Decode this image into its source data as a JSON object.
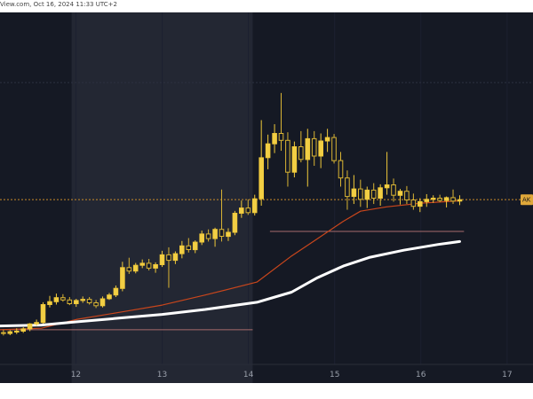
{
  "header": {
    "watermark": "View.com, Oct 16, 2024 11:33 UTC+2"
  },
  "chart_data": {
    "type": "candlestick",
    "x_tick_labels": [
      "12",
      "13",
      "14",
      "15",
      "16",
      "17"
    ],
    "x_tick_values": [
      12,
      13,
      14,
      15,
      16,
      17
    ],
    "xlim": [
      11.12,
      17.3
    ],
    "ylim": [
      0,
      100
    ],
    "price_tag": {
      "label": "AK",
      "value": 47.5
    },
    "highlight_range": [
      11.95,
      14.05
    ],
    "horizontal_lines": [
      {
        "y": 47.5,
        "color": "#c98b2a",
        "dashed": true,
        "x_from": 11.12,
        "x_to": 17.3
      },
      {
        "y": 2.5,
        "color": "#a86b6b",
        "dashed": false,
        "x_from": 11.12,
        "x_to": 14.05
      },
      {
        "y": 36.5,
        "color": "#a86b6b",
        "dashed": false,
        "x_from": 14.25,
        "x_to": 16.5
      },
      {
        "y": 88,
        "color": "#2c3140",
        "dashed": true,
        "x_from": 11.12,
        "x_to": 17.3
      }
    ],
    "ohlc": [
      [
        1.5,
        2.5,
        0.5,
        1.2
      ],
      [
        1.2,
        2.3,
        0.6,
        1.8
      ],
      [
        1.8,
        3.0,
        1.0,
        2.0
      ],
      [
        2.0,
        3.4,
        1.4,
        2.8
      ],
      [
        2.8,
        4.8,
        2.0,
        4.5
      ],
      [
        4.5,
        6.0,
        3.8,
        5.0
      ],
      [
        5.0,
        12.0,
        4.6,
        11.2
      ],
      [
        11.2,
        14.2,
        10.2,
        12.2
      ],
      [
        12.2,
        15.0,
        11.2,
        13.6
      ],
      [
        13.6,
        14.8,
        12.2,
        12.8
      ],
      [
        12.8,
        13.8,
        11.0,
        11.5
      ],
      [
        11.5,
        13.2,
        10.4,
        12.6
      ],
      [
        12.6,
        14.0,
        11.8,
        13.0
      ],
      [
        13.0,
        13.8,
        11.2,
        11.8
      ],
      [
        11.8,
        12.8,
        10.0,
        10.8
      ],
      [
        10.8,
        14.0,
        10.2,
        13.2
      ],
      [
        13.2,
        15.2,
        12.8,
        14.5
      ],
      [
        14.5,
        17.8,
        13.8,
        16.8
      ],
      [
        16.8,
        26.0,
        15.8,
        24.0
      ],
      [
        24.0,
        27.4,
        21.8,
        22.8
      ],
      [
        22.8,
        25.6,
        22.0,
        24.8
      ],
      [
        24.8,
        26.8,
        23.8,
        25.5
      ],
      [
        25.5,
        27.0,
        23.0,
        23.8
      ],
      [
        23.8,
        25.8,
        22.2,
        25.0
      ],
      [
        25.0,
        29.8,
        24.2,
        28.4
      ],
      [
        28.4,
        31.0,
        17.0,
        26.5
      ],
      [
        26.5,
        29.6,
        25.2,
        28.8
      ],
      [
        28.8,
        33.2,
        27.2,
        31.5
      ],
      [
        31.5,
        34.2,
        29.2,
        30.2
      ],
      [
        30.2,
        33.4,
        29.0,
        32.8
      ],
      [
        32.8,
        36.8,
        31.8,
        35.6
      ],
      [
        35.6,
        37.2,
        33.0,
        34.0
      ],
      [
        34.0,
        37.8,
        31.2,
        37.2
      ],
      [
        37.2,
        51.0,
        33.0,
        34.8
      ],
      [
        34.8,
        37.6,
        33.2,
        36.2
      ],
      [
        36.2,
        43.6,
        35.2,
        42.8
      ],
      [
        42.8,
        47.2,
        41.2,
        44.6
      ],
      [
        44.6,
        47.6,
        42.2,
        43.0
      ],
      [
        43.0,
        49.2,
        42.0,
        47.8
      ],
      [
        47.8,
        75.0,
        45.4,
        62.0
      ],
      [
        62.0,
        70.0,
        58.0,
        66.8
      ],
      [
        66.8,
        73.6,
        63.6,
        70.4
      ],
      [
        70.4,
        84.4,
        64.4,
        68.0
      ],
      [
        68.0,
        70.8,
        52.0,
        57.0
      ],
      [
        57.0,
        67.6,
        55.2,
        65.8
      ],
      [
        65.8,
        71.2,
        60.4,
        61.4
      ],
      [
        61.4,
        72.0,
        52.0,
        68.6
      ],
      [
        68.6,
        71.2,
        59.2,
        62.6
      ],
      [
        62.6,
        70.4,
        58.4,
        67.8
      ],
      [
        67.8,
        72.0,
        64.0,
        69.0
      ],
      [
        69.0,
        70.2,
        60.0,
        61.0
      ],
      [
        61.0,
        64.0,
        52.0,
        55.0
      ],
      [
        55.0,
        57.6,
        44.0,
        48.6
      ],
      [
        48.6,
        56.0,
        46.0,
        51.2
      ],
      [
        51.2,
        54.4,
        45.0,
        47.6
      ],
      [
        47.6,
        52.0,
        44.6,
        50.8
      ],
      [
        50.8,
        53.2,
        46.0,
        48.0
      ],
      [
        48.0,
        52.8,
        45.4,
        51.6
      ],
      [
        51.6,
        64.0,
        49.2,
        52.6
      ],
      [
        52.6,
        54.8,
        46.8,
        49.0
      ],
      [
        49.0,
        51.2,
        45.8,
        50.4
      ],
      [
        50.4,
        52.2,
        46.0,
        47.4
      ],
      [
        47.4,
        49.6,
        44.0,
        45.2
      ],
      [
        45.2,
        48.0,
        43.2,
        46.8
      ],
      [
        46.8,
        49.4,
        45.0,
        47.6
      ],
      [
        47.6,
        49.0,
        46.4,
        48.0
      ],
      [
        48.0,
        49.2,
        46.6,
        47.2
      ],
      [
        47.2,
        48.6,
        44.8,
        48.2
      ],
      [
        48.2,
        51.0,
        46.0,
        47.0
      ],
      [
        47.0,
        49.0,
        45.6,
        47.5
      ]
    ],
    "series": [
      {
        "color": "#c9461c",
        "points": [
          [
            11.12,
            2.5
          ],
          [
            11.6,
            3.0
          ],
          [
            12.0,
            6.0
          ],
          [
            12.5,
            8.5
          ],
          [
            13.0,
            11.0
          ],
          [
            13.5,
            14.5
          ],
          [
            14.1,
            19.0
          ],
          [
            14.5,
            28.0
          ],
          [
            14.8,
            34.0
          ],
          [
            15.1,
            40.0
          ],
          [
            15.3,
            43.5
          ],
          [
            15.6,
            45.0
          ],
          [
            16.0,
            46.3
          ],
          [
            16.45,
            47.1
          ]
        ]
      },
      {
        "color": "#ffffff",
        "points": [
          [
            11.12,
            3.8
          ],
          [
            11.6,
            4.1
          ],
          [
            12.0,
            5.2
          ],
          [
            12.5,
            6.5
          ],
          [
            13.0,
            7.8
          ],
          [
            13.5,
            9.5
          ],
          [
            14.1,
            12.0
          ],
          [
            14.5,
            15.5
          ],
          [
            14.8,
            20.5
          ],
          [
            15.1,
            24.5
          ],
          [
            15.4,
            27.5
          ],
          [
            15.8,
            30.0
          ],
          [
            16.2,
            32.0
          ],
          [
            16.45,
            33.0
          ]
        ]
      }
    ]
  }
}
